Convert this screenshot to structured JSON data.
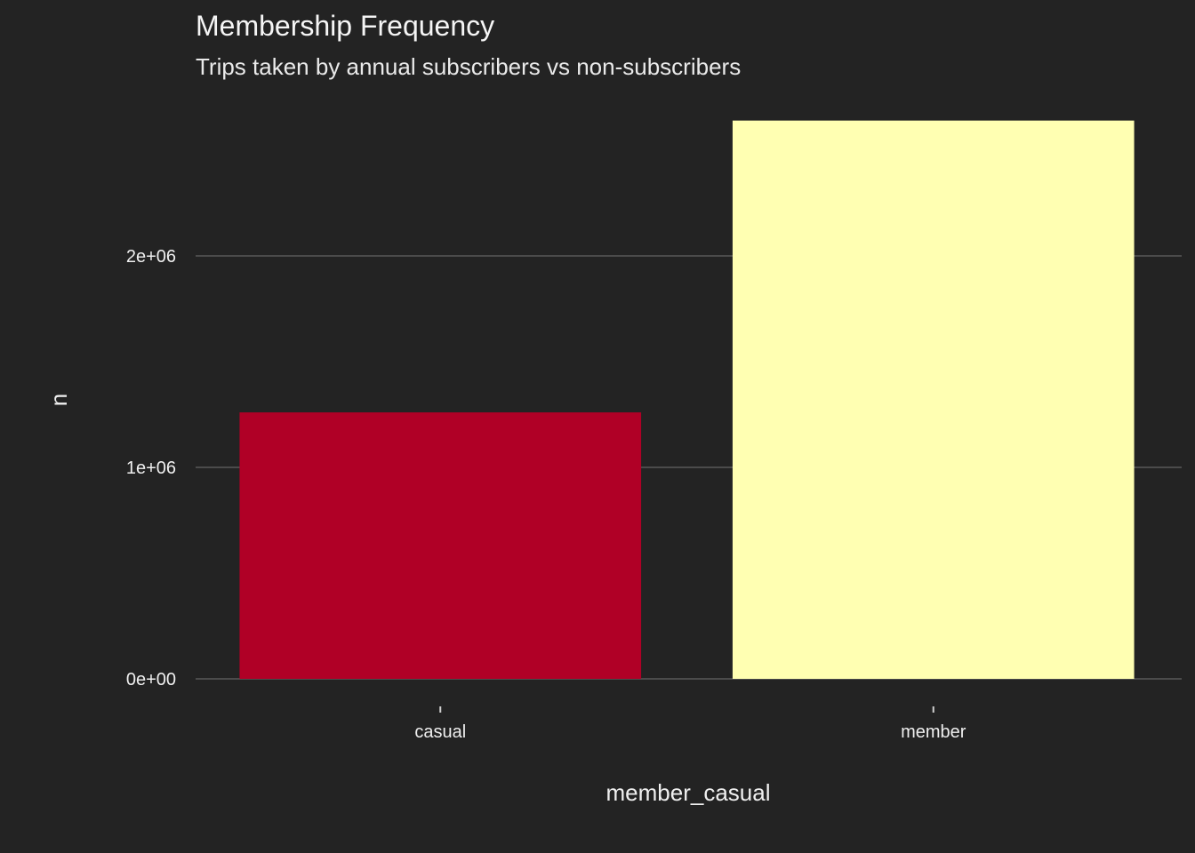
{
  "chart_data": {
    "type": "bar",
    "title": "Membership Frequency",
    "subtitle": "Trips taken by annual subscribers vs non-subscribers",
    "xlabel": "member_casual",
    "ylabel": "n",
    "categories": [
      "casual",
      "member"
    ],
    "values": [
      1260000,
      2640000
    ],
    "colors": [
      "#b00026",
      "#ffffb2"
    ],
    "ylim": [
      0,
      2640000
    ],
    "yticks": [
      0,
      1000000,
      2000000
    ],
    "ytick_labels": [
      "0e+00",
      "1e+06",
      "2e+06"
    ],
    "grid": true,
    "legend": "none",
    "background": "#232323"
  }
}
